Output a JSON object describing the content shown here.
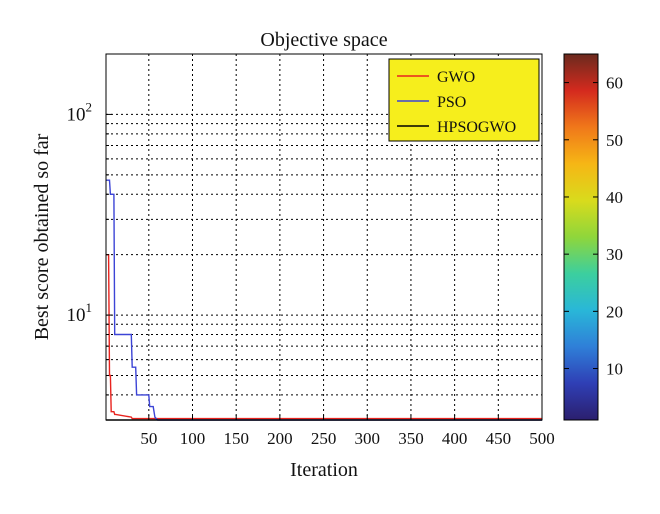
{
  "chart_data": {
    "type": "line",
    "title": "Objective space",
    "xlabel": "Iteration",
    "ylabel": "Best score obtained so far",
    "xlim": [
      1,
      500
    ],
    "ylim": [
      3,
      200
    ],
    "yscale": "log",
    "grid": true,
    "legend_placement": "top-right",
    "x_ticks": [
      50,
      100,
      150,
      200,
      250,
      300,
      350,
      400,
      450,
      500
    ],
    "y_ticks": [
      {
        "value": 10,
        "base": "10",
        "exp": "1"
      },
      {
        "value": 100,
        "base": "10",
        "exp": "2"
      }
    ],
    "series": [
      {
        "name": "GWO",
        "color": "#e8231e",
        "x": [
          1,
          4,
          5,
          6,
          7,
          10,
          11,
          12,
          30,
          31,
          500
        ],
        "y": [
          20,
          20,
          5,
          5,
          3.3,
          3.3,
          3.2,
          3.2,
          3.1,
          3.05,
          3.05
        ]
      },
      {
        "name": "PSO",
        "color": "#3c44d6",
        "x": [
          1,
          5,
          6,
          10,
          11,
          30,
          31,
          35,
          36,
          50,
          51,
          55,
          57,
          60,
          500
        ],
        "y": [
          47,
          47,
          40,
          40,
          8,
          8,
          5.5,
          5.5,
          4,
          4,
          3.5,
          3.5,
          3.1,
          3.0,
          3.0
        ]
      },
      {
        "name": "HPSOGWO",
        "color": "#000000",
        "x": [
          1,
          500
        ],
        "y": [
          3.0,
          3.0
        ]
      }
    ],
    "colorbar": {
      "ticks": [
        10,
        20,
        30,
        40,
        50,
        60
      ],
      "range": [
        1,
        65
      ],
      "colormap": [
        "#2b1f6e",
        "#2f3fb5",
        "#2f7fd8",
        "#29b7d8",
        "#3ccf9e",
        "#8fd63b",
        "#d9db1c",
        "#f6b615",
        "#f0781a",
        "#d42a1e",
        "#6b2a1e"
      ]
    },
    "legend_bg": "#f6ee1c"
  }
}
